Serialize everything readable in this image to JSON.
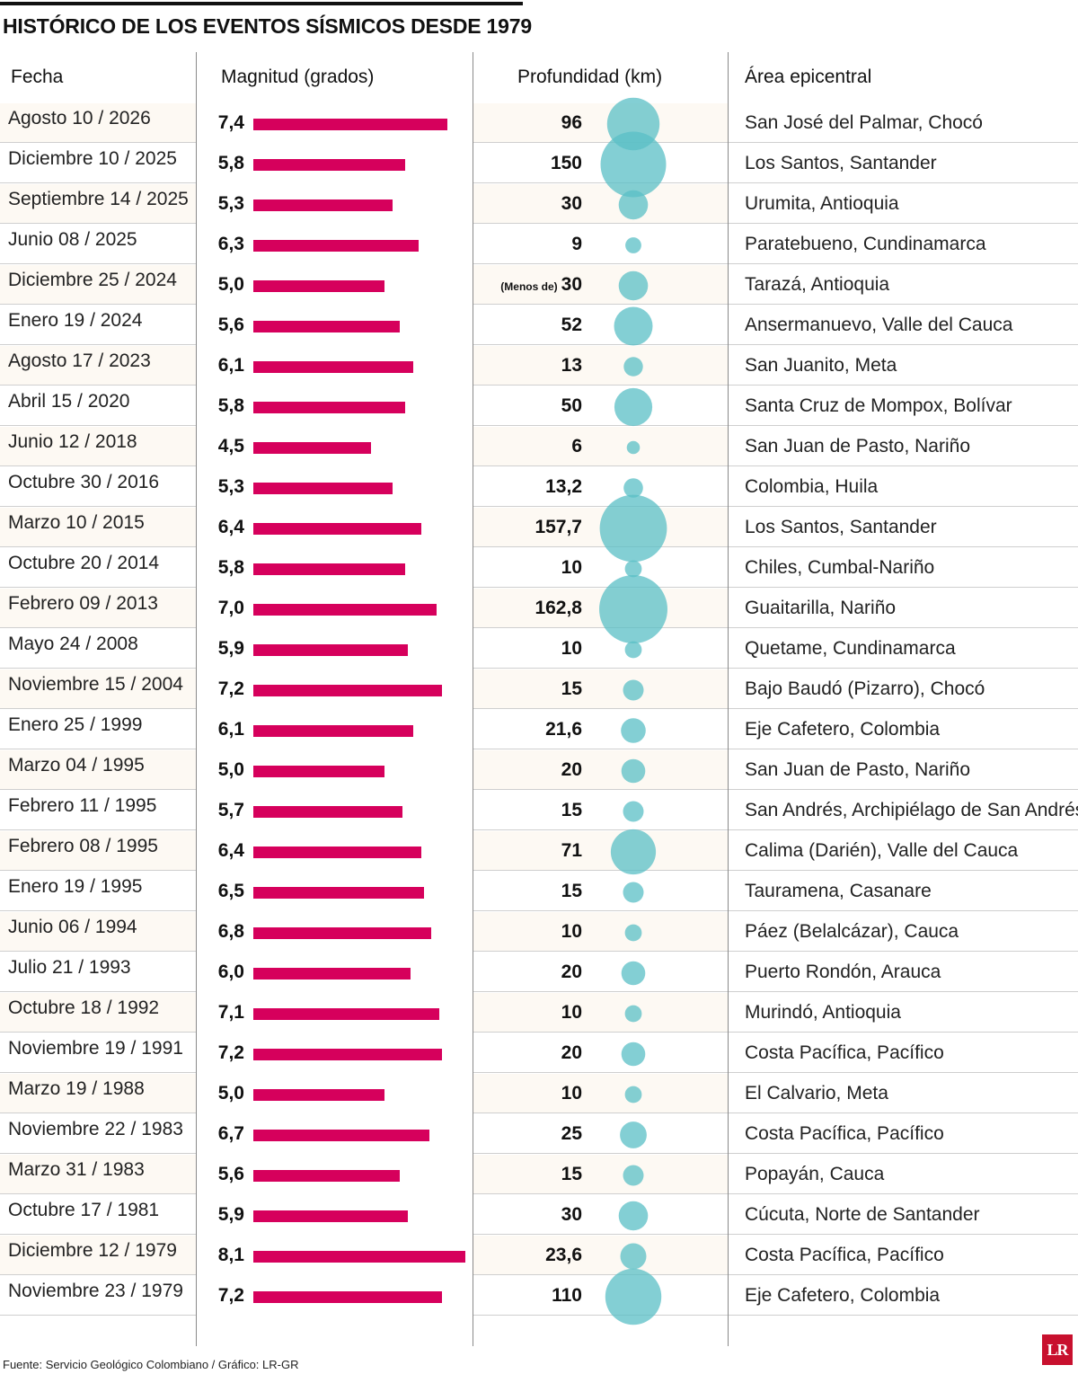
{
  "title": "HISTÓRICO DE LOS EVENTOS SÍSMICOS DESDE 1979",
  "headers": {
    "fecha": "Fecha",
    "magnitud": "Magnitud (grados)",
    "profundidad": "Profundidad (km)",
    "area": "Área epicentral"
  },
  "source": "Fuente: Servicio Geológico Colombiano / Gráfico: LR-GR",
  "logo": "LR",
  "colors": {
    "bar": "#d6005c",
    "bubble": "#59bfc6",
    "row_shade": "#fdf9f3"
  },
  "chart_data": {
    "type": "table",
    "title": "HISTÓRICO DE LOS EVENTOS SÍSMICOS DESDE 1979",
    "columns": [
      "Fecha",
      "Magnitud (grados)",
      "Profundidad (km)",
      "Área epicentral"
    ],
    "rows": [
      {
        "fecha": "Agosto 10 / 2026",
        "mag": "7,4",
        "mag_value": 7.4,
        "depth": "96",
        "depth_value": 96,
        "area": "San José del Palmar, Chocó"
      },
      {
        "fecha": "Diciembre 10 / 2025",
        "mag": "5,8",
        "mag_value": 5.8,
        "depth": "150",
        "depth_value": 150,
        "area": "Los Santos, Santander"
      },
      {
        "fecha": "Septiembre 14 / 2025",
        "mag": "5,3",
        "mag_value": 5.3,
        "depth": "30",
        "depth_value": 30,
        "area": "Urumita, Antioquia"
      },
      {
        "fecha": "Junio 08 / 2025",
        "mag": "6,3",
        "mag_value": 6.3,
        "depth": "9",
        "depth_value": 9,
        "area": "Paratebueno, Cundinamarca"
      },
      {
        "fecha": "Diciembre 25 / 2024",
        "mag": "5,0",
        "mag_value": 5.0,
        "depth_prefix": "(Menos de)",
        "depth": "30",
        "depth_value": 30,
        "area": "Tarazá, Antioquia"
      },
      {
        "fecha": "Enero 19 / 2024",
        "mag": "5,6",
        "mag_value": 5.6,
        "depth": "52",
        "depth_value": 52,
        "area": "Ansermanuevo, Valle del Cauca"
      },
      {
        "fecha": "Agosto 17 / 2023",
        "mag": "6,1",
        "mag_value": 6.1,
        "depth": "13",
        "depth_value": 13,
        "area": "San Juanito, Meta"
      },
      {
        "fecha": "Abril 15 / 2020",
        "mag": "5,8",
        "mag_value": 5.8,
        "depth": "50",
        "depth_value": 50,
        "area": "Santa Cruz de Mompox, Bolívar"
      },
      {
        "fecha": "Junio 12 / 2018",
        "mag": "4,5",
        "mag_value": 4.5,
        "depth": "6",
        "depth_value": 6,
        "area": "San Juan de Pasto, Nariño"
      },
      {
        "fecha": "Octubre 30 / 2016",
        "mag": "5,3",
        "mag_value": 5.3,
        "depth": "13,2",
        "depth_value": 13.2,
        "area": "Colombia, Huila"
      },
      {
        "fecha": "Marzo 10 / 2015",
        "mag": "6,4",
        "mag_value": 6.4,
        "depth": "157,7",
        "depth_value": 157.7,
        "area": "Los Santos, Santander"
      },
      {
        "fecha": "Octubre 20 / 2014",
        "mag": "5,8",
        "mag_value": 5.8,
        "depth": "10",
        "depth_value": 10,
        "area": "Chiles, Cumbal-Nariño"
      },
      {
        "fecha": "Febrero 09 / 2013",
        "mag": "7,0",
        "mag_value": 7.0,
        "depth": "162,8",
        "depth_value": 162.8,
        "area": "Guaitarilla, Nariño"
      },
      {
        "fecha": "Mayo 24 / 2008",
        "mag": "5,9",
        "mag_value": 5.9,
        "depth": "10",
        "depth_value": 10,
        "area": "Quetame, Cundinamarca"
      },
      {
        "fecha": "Noviembre 15 / 2004",
        "mag": "7,2",
        "mag_value": 7.2,
        "depth": "15",
        "depth_value": 15,
        "area": "Bajo Baudó (Pizarro), Chocó"
      },
      {
        "fecha": "Enero 25 / 1999",
        "mag": "6,1",
        "mag_value": 6.1,
        "depth": "21,6",
        "depth_value": 21.6,
        "area": "Eje Cafetero, Colombia"
      },
      {
        "fecha": "Marzo 04 / 1995",
        "mag": "5,0",
        "mag_value": 5.0,
        "depth": "20",
        "depth_value": 20,
        "area": "San Juan de Pasto, Nariño"
      },
      {
        "fecha": "Febrero 11 / 1995",
        "mag": "5,7",
        "mag_value": 5.7,
        "depth": "15",
        "depth_value": 15,
        "area": "San Andrés, Archipiélago de San Andrés"
      },
      {
        "fecha": "Febrero 08 / 1995",
        "mag": "6,4",
        "mag_value": 6.4,
        "depth": "71",
        "depth_value": 71,
        "area": "Calima (Darién), Valle del Cauca"
      },
      {
        "fecha": "Enero 19 / 1995",
        "mag": "6,5",
        "mag_value": 6.5,
        "depth": "15",
        "depth_value": 15,
        "area": "Tauramena, Casanare"
      },
      {
        "fecha": "Junio 06 / 1994",
        "mag": "6,8",
        "mag_value": 6.8,
        "depth": "10",
        "depth_value": 10,
        "area": "Páez (Belalcázar), Cauca"
      },
      {
        "fecha": "Julio 21 / 1993",
        "mag": "6,0",
        "mag_value": 6.0,
        "depth": "20",
        "depth_value": 20,
        "area": "Puerto Rondón, Arauca"
      },
      {
        "fecha": "Octubre 18 / 1992",
        "mag": "7,1",
        "mag_value": 7.1,
        "depth": "10",
        "depth_value": 10,
        "area": "Murindó, Antioquia"
      },
      {
        "fecha": "Noviembre 19 / 1991",
        "mag": "7,2",
        "mag_value": 7.2,
        "depth": "20",
        "depth_value": 20,
        "area": "Costa Pacífica, Pacífico"
      },
      {
        "fecha": "Marzo 19 / 1988",
        "mag": "5,0",
        "mag_value": 5.0,
        "depth": "10",
        "depth_value": 10,
        "area": "El Calvario, Meta"
      },
      {
        "fecha": "Noviembre 22 / 1983",
        "mag": "6,7",
        "mag_value": 6.7,
        "depth": "25",
        "depth_value": 25,
        "area": "Costa Pacífica, Pacífico"
      },
      {
        "fecha": "Marzo 31 / 1983",
        "mag": "5,6",
        "mag_value": 5.6,
        "depth": "15",
        "depth_value": 15,
        "area": "Popayán, Cauca"
      },
      {
        "fecha": "Octubre 17 / 1981",
        "mag": "5,9",
        "mag_value": 5.9,
        "depth": "30",
        "depth_value": 30,
        "area": "Cúcuta, Norte de Santander"
      },
      {
        "fecha": "Diciembre 12 / 1979",
        "mag": "8,1",
        "mag_value": 8.1,
        "depth": "23,6",
        "depth_value": 23.6,
        "area": "Costa Pacífica, Pacífico"
      },
      {
        "fecha": "Noviembre 23 / 1979",
        "mag": "7,2",
        "mag_value": 7.2,
        "depth": "110",
        "depth_value": 110,
        "area": "Eje Cafetero, Colombia"
      }
    ]
  }
}
